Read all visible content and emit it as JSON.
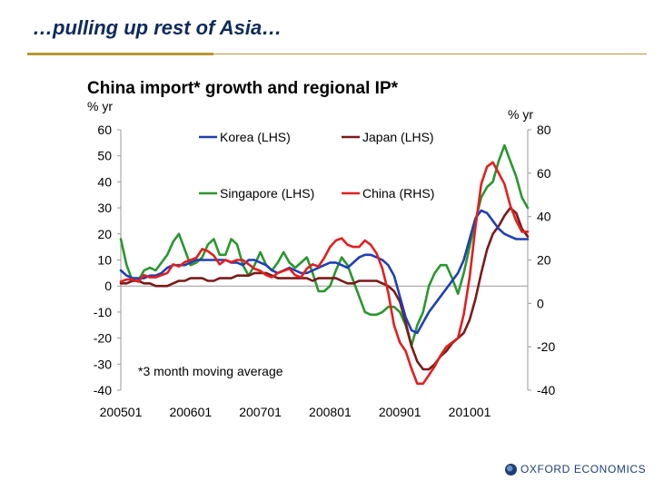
{
  "slide": {
    "title": "…pulling up rest of Asia…"
  },
  "brand": {
    "name": "OXFORD ECONOMICS"
  },
  "chart_data": {
    "type": "line",
    "title": "China import* growth and regional IP*",
    "ylabel_left": "% yr",
    "ylabel_right": "% yr",
    "ylim_left": [
      -40,
      60
    ],
    "ylim_right": [
      -40,
      80
    ],
    "yticks_left": [
      "60",
      "50",
      "40",
      "30",
      "20",
      "10",
      "0",
      "-10",
      "-20",
      "-30",
      "-40"
    ],
    "yticks_right": [
      "80",
      "60",
      "40",
      "20",
      "0",
      "-20",
      "-40"
    ],
    "xticks": [
      "200501",
      "200601",
      "200701",
      "200801",
      "200901",
      "201001"
    ],
    "x_range": [
      2005.0,
      2010.833
    ],
    "annotation": "*3 month moving average",
    "legend": "top, two columns",
    "colors": {
      "korea": "#1f3fb3",
      "japan": "#7b1a1a",
      "singapore": "#2a9630",
      "china": "#e02020",
      "axis": "#9a9a9a"
    },
    "series": [
      {
        "name": "Korea (LHS)",
        "axis": "left",
        "key": "korea",
        "x": [
          2005.0,
          2005.083,
          2005.167,
          2005.25,
          2005.333,
          2005.417,
          2005.5,
          2005.583,
          2005.667,
          2005.75,
          2005.833,
          2005.917,
          2006.0,
          2006.083,
          2006.167,
          2006.25,
          2006.333,
          2006.417,
          2006.5,
          2006.583,
          2006.667,
          2006.75,
          2006.833,
          2006.917,
          2007.0,
          2007.083,
          2007.167,
          2007.25,
          2007.333,
          2007.417,
          2007.5,
          2007.583,
          2007.667,
          2007.75,
          2007.833,
          2007.917,
          2008.0,
          2008.083,
          2008.167,
          2008.25,
          2008.333,
          2008.417,
          2008.5,
          2008.583,
          2008.667,
          2008.75,
          2008.833,
          2008.917,
          2009.0,
          2009.083,
          2009.167,
          2009.25,
          2009.333,
          2009.417,
          2009.5,
          2009.583,
          2009.667,
          2009.75,
          2009.833,
          2009.917,
          2010.0,
          2010.083,
          2010.167,
          2010.25,
          2010.333,
          2010.417,
          2010.5,
          2010.583,
          2010.667,
          2010.75,
          2010.833
        ],
        "values": [
          6,
          4,
          3,
          3,
          3,
          4,
          4,
          5,
          7,
          8,
          8,
          8,
          9,
          10,
          10,
          10,
          10,
          10,
          10,
          9,
          9,
          8,
          10,
          10,
          9,
          8,
          6,
          5,
          6,
          7,
          6,
          5,
          5,
          6,
          7,
          8,
          9,
          9,
          8,
          7,
          9,
          11,
          12,
          12,
          11,
          10,
          8,
          4,
          -4,
          -12,
          -17,
          -18,
          -14,
          -10,
          -7,
          -4,
          -1,
          2,
          5,
          10,
          18,
          26,
          29,
          28,
          25,
          22,
          20,
          19,
          18,
          18,
          18
        ]
      },
      {
        "name": "Japan (LHS)",
        "axis": "left",
        "key": "japan",
        "x": [
          2005.0,
          2005.083,
          2005.167,
          2005.25,
          2005.333,
          2005.417,
          2005.5,
          2005.583,
          2005.667,
          2005.75,
          2005.833,
          2005.917,
          2006.0,
          2006.083,
          2006.167,
          2006.25,
          2006.333,
          2006.417,
          2006.5,
          2006.583,
          2006.667,
          2006.75,
          2006.833,
          2006.917,
          2007.0,
          2007.083,
          2007.167,
          2007.25,
          2007.333,
          2007.417,
          2007.5,
          2007.583,
          2007.667,
          2007.75,
          2007.833,
          2007.917,
          2008.0,
          2008.083,
          2008.167,
          2008.25,
          2008.333,
          2008.417,
          2008.5,
          2008.583,
          2008.667,
          2008.75,
          2008.833,
          2008.917,
          2009.0,
          2009.083,
          2009.167,
          2009.25,
          2009.333,
          2009.417,
          2009.5,
          2009.583,
          2009.667,
          2009.75,
          2009.833,
          2009.917,
          2010.0,
          2010.083,
          2010.167,
          2010.25,
          2010.333,
          2010.417,
          2010.5,
          2010.583,
          2010.667,
          2010.75,
          2010.833
        ],
        "values": [
          1,
          1,
          2,
          2,
          1,
          1,
          0,
          0,
          0,
          1,
          2,
          2,
          3,
          3,
          3,
          2,
          2,
          3,
          3,
          3,
          4,
          4,
          4,
          5,
          5,
          5,
          4,
          3,
          3,
          3,
          3,
          3,
          3,
          2,
          3,
          3,
          3,
          3,
          2,
          1,
          1,
          2,
          2,
          2,
          2,
          1,
          0,
          -2,
          -6,
          -14,
          -23,
          -29,
          -32,
          -32,
          -30,
          -27,
          -25,
          -22,
          -20,
          -18,
          -13,
          -5,
          5,
          14,
          20,
          23,
          27,
          30,
          28,
          22,
          19
        ]
      },
      {
        "name": "Singapore (LHS)",
        "axis": "left",
        "key": "singapore",
        "x": [
          2005.0,
          2005.083,
          2005.167,
          2005.25,
          2005.333,
          2005.417,
          2005.5,
          2005.583,
          2005.667,
          2005.75,
          2005.833,
          2005.917,
          2006.0,
          2006.083,
          2006.167,
          2006.25,
          2006.333,
          2006.417,
          2006.5,
          2006.583,
          2006.667,
          2006.75,
          2006.833,
          2006.917,
          2007.0,
          2007.083,
          2007.167,
          2007.25,
          2007.333,
          2007.417,
          2007.5,
          2007.583,
          2007.667,
          2007.75,
          2007.833,
          2007.917,
          2008.0,
          2008.083,
          2008.167,
          2008.25,
          2008.333,
          2008.417,
          2008.5,
          2008.583,
          2008.667,
          2008.75,
          2008.833,
          2008.917,
          2009.0,
          2009.083,
          2009.167,
          2009.25,
          2009.333,
          2009.417,
          2009.5,
          2009.583,
          2009.667,
          2009.75,
          2009.833,
          2009.917,
          2010.0,
          2010.083,
          2010.167,
          2010.25,
          2010.333,
          2010.417,
          2010.5,
          2010.583,
          2010.667,
          2010.75,
          2010.833
        ],
        "values": [
          18,
          8,
          2,
          2,
          6,
          7,
          6,
          9,
          12,
          17,
          20,
          14,
          8,
          9,
          11,
          16,
          18,
          12,
          12,
          18,
          16,
          8,
          4,
          8,
          13,
          8,
          6,
          9,
          13,
          9,
          7,
          9,
          11,
          5,
          -2,
          -2,
          0,
          6,
          11,
          8,
          2,
          -4,
          -10,
          -11,
          -11,
          -10,
          -8,
          -8,
          -10,
          -15,
          -23,
          -15,
          -10,
          0,
          5,
          8,
          8,
          3,
          -3,
          5,
          15,
          25,
          34,
          38,
          40,
          48,
          54,
          48,
          42,
          34,
          30
        ]
      },
      {
        "name": "China (RHS)",
        "axis": "right",
        "key": "china",
        "x": [
          2005.0,
          2005.083,
          2005.167,
          2005.25,
          2005.333,
          2005.417,
          2005.5,
          2005.583,
          2005.667,
          2005.75,
          2005.833,
          2005.917,
          2006.0,
          2006.083,
          2006.167,
          2006.25,
          2006.333,
          2006.417,
          2006.5,
          2006.583,
          2006.667,
          2006.75,
          2006.833,
          2006.917,
          2007.0,
          2007.083,
          2007.167,
          2007.25,
          2007.333,
          2007.417,
          2007.5,
          2007.583,
          2007.667,
          2007.75,
          2007.833,
          2007.917,
          2008.0,
          2008.083,
          2008.167,
          2008.25,
          2008.333,
          2008.417,
          2008.5,
          2008.583,
          2008.667,
          2008.75,
          2008.833,
          2008.917,
          2009.0,
          2009.083,
          2009.167,
          2009.25,
          2009.333,
          2009.417,
          2009.5,
          2009.583,
          2009.667,
          2009.75,
          2009.833,
          2009.917,
          2010.0,
          2010.083,
          2010.167,
          2010.25,
          2010.333,
          2010.417,
          2010.5,
          2010.583,
          2010.667,
          2010.75,
          2010.833
        ],
        "values": [
          10,
          11,
          11,
          10,
          13,
          12,
          12,
          13,
          14,
          18,
          17,
          19,
          20,
          21,
          25,
          24,
          22,
          18,
          20,
          19,
          20,
          20,
          18,
          16,
          15,
          13,
          12,
          14,
          15,
          16,
          13,
          12,
          16,
          18,
          17,
          21,
          26,
          29,
          30,
          27,
          26,
          26,
          29,
          27,
          23,
          16,
          5,
          -10,
          -18,
          -22,
          -30,
          -37,
          -37,
          -33,
          -29,
          -24,
          -20,
          -18,
          -16,
          -5,
          12,
          35,
          55,
          63,
          65,
          60,
          55,
          45,
          38,
          33,
          33
        ]
      }
    ]
  }
}
